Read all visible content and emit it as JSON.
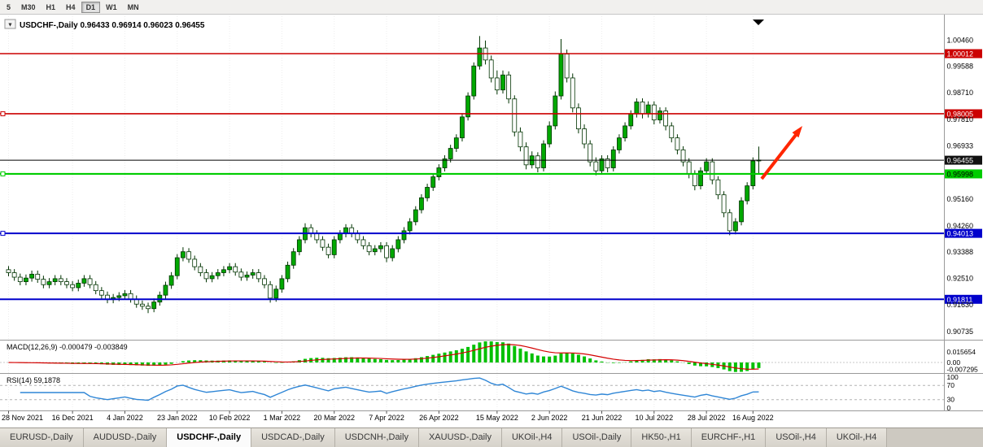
{
  "toolbar": {
    "timeframes": [
      {
        "label": "5",
        "active": false
      },
      {
        "label": "M30",
        "active": false
      },
      {
        "label": "H1",
        "active": false
      },
      {
        "label": "H4",
        "active": false
      },
      {
        "label": "D1",
        "active": true
      },
      {
        "label": "W1",
        "active": false
      },
      {
        "label": "MN",
        "active": false
      }
    ]
  },
  "chart": {
    "title_line": "USDCHF-,Daily  0.96433 0.96914 0.96023 0.96455"
  },
  "chart_data": {
    "type": "candlestick",
    "symbol": "USDCHF-",
    "timeframe": "Daily",
    "ohlc_header": {
      "open": 0.96433,
      "high": 0.96914,
      "low": 0.96023,
      "close": 0.96455
    },
    "y_ticks": [
      "1.00460",
      "0.99588",
      "0.98710",
      "0.97810",
      "0.96933",
      "0.95160",
      "0.94260",
      "0.93388",
      "0.92510",
      "0.91630",
      "0.90735"
    ],
    "hlines": [
      {
        "price": 1.00012,
        "label": "1.00012",
        "color": "#cc0000",
        "stroke": 1.6,
        "badge_bg": "#cc0000",
        "badge_fg": "#ffffff",
        "handle": false
      },
      {
        "price": 0.98005,
        "label": "0.98005",
        "color": "#cc0000",
        "stroke": 1.6,
        "badge_bg": "#cc0000",
        "badge_fg": "#ffffff",
        "handle": true
      },
      {
        "price": 0.95998,
        "label": "0.95998",
        "color": "#00cc00",
        "stroke": 2.2,
        "badge_bg": "#00cc00",
        "badge_fg": "#000000",
        "handle": true
      },
      {
        "price": 0.94013,
        "label": "0.94013",
        "color": "#0000cc",
        "stroke": 2.0,
        "badge_bg": "#0000cc",
        "badge_fg": "#ffffff",
        "handle": true
      },
      {
        "price": 0.91811,
        "label": "0.91811",
        "color": "#0000cc",
        "stroke": 2.0,
        "badge_bg": "#0000cc",
        "badge_fg": "#ffffff",
        "handle": false
      }
    ],
    "current_price": {
      "price": 0.96455,
      "label": "0.96455",
      "badge_bg": "#111111",
      "badge_fg": "#ffffff"
    },
    "x_labels": [
      {
        "label": "28 Nov 2021",
        "i": 0
      },
      {
        "label": "16 Dec 2021",
        "i": 11
      },
      {
        "label": "4 Jan 2022",
        "i": 20
      },
      {
        "label": "23 Jan 2022",
        "i": 29
      },
      {
        "label": "10 Feb 2022",
        "i": 38
      },
      {
        "label": "1 Mar 2022",
        "i": 47
      },
      {
        "label": "20 Mar 2022",
        "i": 56
      },
      {
        "label": "7 Apr 2022",
        "i": 65
      },
      {
        "label": "26 Apr 2022",
        "i": 74
      },
      {
        "label": "15 May 2022",
        "i": 84
      },
      {
        "label": "2 Jun 2022",
        "i": 93
      },
      {
        "label": "21 Jun 2022",
        "i": 102
      },
      {
        "label": "10 Jul 2022",
        "i": 111
      },
      {
        "label": "28 Jul 2022",
        "i": 120
      },
      {
        "label": "16 Aug 2022",
        "i": 128
      }
    ],
    "style": {
      "up_fill": "#00a800",
      "up_stroke": "#003300",
      "down_fill": "#ffffff",
      "down_stroke": "#003300",
      "wick": "#003300"
    },
    "candles": [
      [
        0.928,
        0.9292,
        0.9258,
        0.927
      ],
      [
        0.927,
        0.9282,
        0.9243,
        0.9255
      ],
      [
        0.9255,
        0.9267,
        0.9228,
        0.924
      ],
      [
        0.924,
        0.9264,
        0.9228,
        0.9252
      ],
      [
        0.9252,
        0.9277,
        0.924,
        0.9265
      ],
      [
        0.9265,
        0.9277,
        0.9236,
        0.9248
      ],
      [
        0.9248,
        0.926,
        0.9218,
        0.923
      ],
      [
        0.923,
        0.9252,
        0.9218,
        0.924
      ],
      [
        0.924,
        0.9262,
        0.9228,
        0.925
      ],
      [
        0.925,
        0.9262,
        0.9228,
        0.924
      ],
      [
        0.924,
        0.9252,
        0.9218,
        0.923
      ],
      [
        0.923,
        0.9242,
        0.9208,
        0.922
      ],
      [
        0.922,
        0.9247,
        0.9208,
        0.9235
      ],
      [
        0.9235,
        0.9262,
        0.9223,
        0.925
      ],
      [
        0.925,
        0.9262,
        0.9218,
        0.923
      ],
      [
        0.923,
        0.9242,
        0.9198,
        0.921
      ],
      [
        0.921,
        0.9222,
        0.9183,
        0.9195
      ],
      [
        0.9195,
        0.9207,
        0.9168,
        0.918
      ],
      [
        0.918,
        0.9199,
        0.9168,
        0.9187
      ],
      [
        0.9187,
        0.9205,
        0.9175,
        0.9193
      ],
      [
        0.9193,
        0.9212,
        0.9181,
        0.92
      ],
      [
        0.92,
        0.9212,
        0.917,
        0.9182
      ],
      [
        0.9182,
        0.9194,
        0.9153,
        0.9165
      ],
      [
        0.9165,
        0.9177,
        0.9146,
        0.9158
      ],
      [
        0.9158,
        0.917,
        0.9135,
        0.915
      ],
      [
        0.915,
        0.9184,
        0.9138,
        0.9172
      ],
      [
        0.9172,
        0.9207,
        0.916,
        0.9195
      ],
      [
        0.9195,
        0.924,
        0.9183,
        0.9228
      ],
      [
        0.9228,
        0.9272,
        0.9216,
        0.926
      ],
      [
        0.926,
        0.9332,
        0.9248,
        0.932
      ],
      [
        0.932,
        0.9355,
        0.9308,
        0.934
      ],
      [
        0.934,
        0.9352,
        0.9303,
        0.9315
      ],
      [
        0.9315,
        0.9327,
        0.9278,
        0.929
      ],
      [
        0.929,
        0.9302,
        0.9258,
        0.927
      ],
      [
        0.927,
        0.9282,
        0.9238,
        0.925
      ],
      [
        0.925,
        0.9272,
        0.9238,
        0.926
      ],
      [
        0.926,
        0.9282,
        0.9248,
        0.927
      ],
      [
        0.927,
        0.9292,
        0.9258,
        0.928
      ],
      [
        0.928,
        0.9302,
        0.9268,
        0.929
      ],
      [
        0.929,
        0.9302,
        0.926,
        0.9272
      ],
      [
        0.9272,
        0.9284,
        0.9243,
        0.9255
      ],
      [
        0.9255,
        0.9274,
        0.9243,
        0.9262
      ],
      [
        0.9262,
        0.9282,
        0.925,
        0.927
      ],
      [
        0.927,
        0.9282,
        0.9238,
        0.925
      ],
      [
        0.925,
        0.9262,
        0.9218,
        0.923
      ],
      [
        0.923,
        0.9242,
        0.917,
        0.9185
      ],
      [
        0.9185,
        0.9227,
        0.9173,
        0.9215
      ],
      [
        0.9215,
        0.9262,
        0.9203,
        0.925
      ],
      [
        0.925,
        0.9307,
        0.9238,
        0.9295
      ],
      [
        0.9295,
        0.9352,
        0.9283,
        0.934
      ],
      [
        0.934,
        0.9392,
        0.9328,
        0.938
      ],
      [
        0.938,
        0.9435,
        0.9368,
        0.942
      ],
      [
        0.942,
        0.9432,
        0.9388,
        0.94
      ],
      [
        0.94,
        0.9412,
        0.9368,
        0.938
      ],
      [
        0.938,
        0.9392,
        0.9343,
        0.9355
      ],
      [
        0.9355,
        0.9367,
        0.9318,
        0.933
      ],
      [
        0.933,
        0.9392,
        0.9318,
        0.938
      ],
      [
        0.938,
        0.9412,
        0.9368,
        0.94
      ],
      [
        0.94,
        0.9432,
        0.9388,
        0.942
      ],
      [
        0.942,
        0.9432,
        0.9388,
        0.94
      ],
      [
        0.94,
        0.9412,
        0.9368,
        0.938
      ],
      [
        0.938,
        0.9392,
        0.9348,
        0.936
      ],
      [
        0.936,
        0.9372,
        0.9328,
        0.934
      ],
      [
        0.934,
        0.9362,
        0.9328,
        0.935
      ],
      [
        0.935,
        0.9372,
        0.9338,
        0.936
      ],
      [
        0.936,
        0.9372,
        0.9305,
        0.932
      ],
      [
        0.932,
        0.9362,
        0.9308,
        0.935
      ],
      [
        0.935,
        0.9392,
        0.9338,
        0.938
      ],
      [
        0.938,
        0.9422,
        0.9368,
        0.941
      ],
      [
        0.941,
        0.9452,
        0.9398,
        0.944
      ],
      [
        0.944,
        0.9492,
        0.9428,
        0.948
      ],
      [
        0.948,
        0.9532,
        0.9468,
        0.952
      ],
      [
        0.952,
        0.9567,
        0.9508,
        0.9555
      ],
      [
        0.9555,
        0.9602,
        0.9543,
        0.959
      ],
      [
        0.959,
        0.9632,
        0.9578,
        0.962
      ],
      [
        0.962,
        0.9662,
        0.9608,
        0.965
      ],
      [
        0.965,
        0.9697,
        0.9638,
        0.9685
      ],
      [
        0.9685,
        0.9732,
        0.9673,
        0.972
      ],
      [
        0.972,
        0.9802,
        0.9708,
        0.979
      ],
      [
        0.979,
        0.9872,
        0.9778,
        0.986
      ],
      [
        0.986,
        0.9972,
        0.9848,
        0.996
      ],
      [
        0.996,
        1.006,
        0.9948,
        1.002
      ],
      [
        1.002,
        1.0045,
        0.9965,
        0.998
      ],
      [
        0.998,
        0.9995,
        0.9905,
        0.992
      ],
      [
        0.992,
        0.9945,
        0.9865,
        0.988
      ],
      [
        0.988,
        0.9945,
        0.9868,
        0.993
      ],
      [
        0.993,
        0.9942,
        0.9835,
        0.985
      ],
      [
        0.985,
        0.9862,
        0.9725,
        0.974
      ],
      [
        0.974,
        0.9755,
        0.9675,
        0.969
      ],
      [
        0.969,
        0.9705,
        0.9615,
        0.963
      ],
      [
        0.963,
        0.9675,
        0.9618,
        0.966
      ],
      [
        0.966,
        0.9672,
        0.9605,
        0.962
      ],
      [
        0.962,
        0.9712,
        0.9608,
        0.97
      ],
      [
        0.97,
        0.9775,
        0.9688,
        0.976
      ],
      [
        0.976,
        0.9875,
        0.9748,
        0.986
      ],
      [
        0.986,
        1.005,
        0.9848,
        1.0
      ],
      [
        1.0,
        1.0015,
        0.9905,
        0.992
      ],
      [
        0.992,
        0.9935,
        0.9805,
        0.982
      ],
      [
        0.982,
        0.9835,
        0.9735,
        0.975
      ],
      [
        0.975,
        0.9765,
        0.9685,
        0.97
      ],
      [
        0.97,
        0.9712,
        0.9625,
        0.964
      ],
      [
        0.964,
        0.9655,
        0.9595,
        0.961
      ],
      [
        0.961,
        0.9662,
        0.9598,
        0.965
      ],
      [
        0.965,
        0.9662,
        0.9605,
        0.962
      ],
      [
        0.962,
        0.9692,
        0.9608,
        0.968
      ],
      [
        0.968,
        0.9732,
        0.9668,
        0.972
      ],
      [
        0.972,
        0.9772,
        0.9708,
        0.976
      ],
      [
        0.976,
        0.9812,
        0.9748,
        0.98
      ],
      [
        0.98,
        0.9852,
        0.9788,
        0.984
      ],
      [
        0.984,
        0.9852,
        0.9785,
        0.98
      ],
      [
        0.98,
        0.9842,
        0.9788,
        0.983
      ],
      [
        0.983,
        0.9842,
        0.9765,
        0.978
      ],
      [
        0.978,
        0.9822,
        0.9768,
        0.981
      ],
      [
        0.981,
        0.9822,
        0.9745,
        0.976
      ],
      [
        0.976,
        0.9772,
        0.9705,
        0.972
      ],
      [
        0.972,
        0.9732,
        0.9665,
        0.968
      ],
      [
        0.968,
        0.9692,
        0.9625,
        0.964
      ],
      [
        0.964,
        0.9652,
        0.9585,
        0.96
      ],
      [
        0.96,
        0.9612,
        0.9545,
        0.956
      ],
      [
        0.956,
        0.9622,
        0.9548,
        0.961
      ],
      [
        0.961,
        0.9652,
        0.9598,
        0.964
      ],
      [
        0.964,
        0.9652,
        0.9565,
        0.958
      ],
      [
        0.958,
        0.9592,
        0.9515,
        0.953
      ],
      [
        0.953,
        0.9542,
        0.9455,
        0.947
      ],
      [
        0.947,
        0.9482,
        0.9395,
        0.941
      ],
      [
        0.941,
        0.9452,
        0.9398,
        0.944
      ],
      [
        0.944,
        0.9522,
        0.9428,
        0.951
      ],
      [
        0.951,
        0.9572,
        0.9498,
        0.956
      ],
      [
        0.956,
        0.9655,
        0.9548,
        0.9643
      ],
      [
        0.9643,
        0.9691,
        0.9602,
        0.9646
      ]
    ],
    "indicators": {
      "macd": {
        "label_line": "MACD(12,26,9) -0.000479 -0.003849",
        "fast": 12,
        "slow": 26,
        "signal": 9,
        "value": -0.000479,
        "signal_value": -0.003849,
        "axis": [
          "0.015654",
          "0.00",
          "-0.007295"
        ],
        "histogram_color": "#00c000",
        "signal_color": "#d40000"
      },
      "rsi": {
        "label_line": "RSI(14) 59,1878",
        "period": 14,
        "value": 59.1878,
        "levels": [
          70,
          30
        ],
        "axis": [
          "100",
          "70",
          "30",
          "0"
        ],
        "line_color": "#2f86d6"
      }
    },
    "annotations": {
      "arrow": {
        "color": "#ff2600",
        "direction": "up-right"
      },
      "shift_marker": "▼"
    }
  },
  "tabs": [
    {
      "label": "EURUSD-,Daily",
      "active": false
    },
    {
      "label": "AUDUSD-,Daily",
      "active": false
    },
    {
      "label": "USDCHF-,Daily",
      "active": true
    },
    {
      "label": "USDCAD-,Daily",
      "active": false
    },
    {
      "label": "USDCNH-,Daily",
      "active": false
    },
    {
      "label": "XAUUSD-,Daily",
      "active": false
    },
    {
      "label": "UKOil-,H4",
      "active": false
    },
    {
      "label": "USOil-,Daily",
      "active": false
    },
    {
      "label": "HK50-,H1",
      "active": false
    },
    {
      "label": "EURCHF-,H1",
      "active": false
    },
    {
      "label": "USOil-,H4",
      "active": false
    },
    {
      "label": "UKOil-,H4",
      "active": false
    }
  ]
}
